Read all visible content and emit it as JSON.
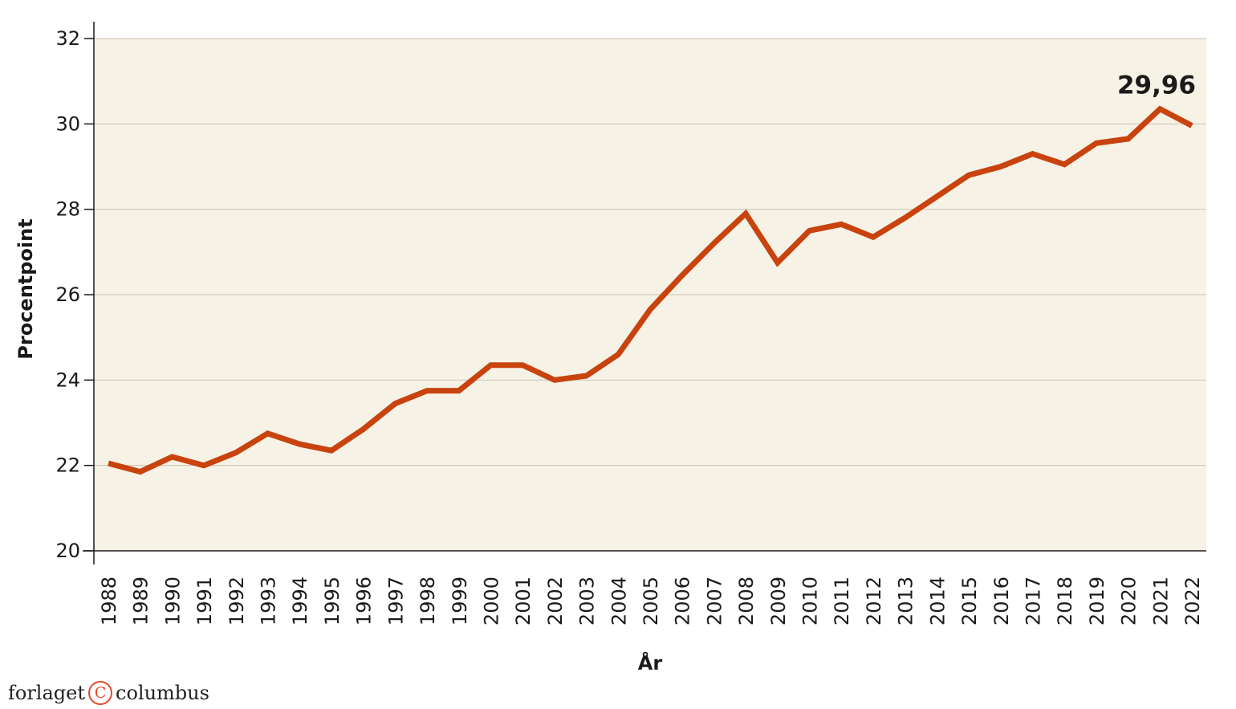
{
  "chart_data": {
    "type": "line",
    "xlabel": "År",
    "ylabel": "Procentpoint",
    "ylim": [
      20,
      32
    ],
    "yticks": [
      20,
      22,
      24,
      26,
      28,
      30,
      32
    ],
    "grid": "horizontal",
    "background_color": "#f6f2e6",
    "line_color": "#c9430e",
    "categories": [
      "1988",
      "1989",
      "1990",
      "1991",
      "1992",
      "1993",
      "1994",
      "1995",
      "1996",
      "1997",
      "1998",
      "1999",
      "2000",
      "2001",
      "2002",
      "2003",
      "2004",
      "2005",
      "2006",
      "2007",
      "2008",
      "2009",
      "2010",
      "2011",
      "2012",
      "2013",
      "2014",
      "2015",
      "2016",
      "2017",
      "2018",
      "2019",
      "2020",
      "2021",
      "2022"
    ],
    "series": [
      {
        "values": [
          22.05,
          21.85,
          22.2,
          22.0,
          22.3,
          22.75,
          22.5,
          22.35,
          22.85,
          23.45,
          23.75,
          23.75,
          24.35,
          24.35,
          24.0,
          24.1,
          24.6,
          25.65,
          26.45,
          27.2,
          27.9,
          26.75,
          27.5,
          27.65,
          27.35,
          27.8,
          28.3,
          28.8,
          29.0,
          29.3,
          29.05,
          29.55,
          29.65,
          30.35,
          29.96
        ]
      }
    ],
    "annotations": [
      {
        "text": "29,96"
      }
    ]
  },
  "publisher": {
    "left": "forlaget",
    "right": "columbus",
    "mark": "C"
  }
}
